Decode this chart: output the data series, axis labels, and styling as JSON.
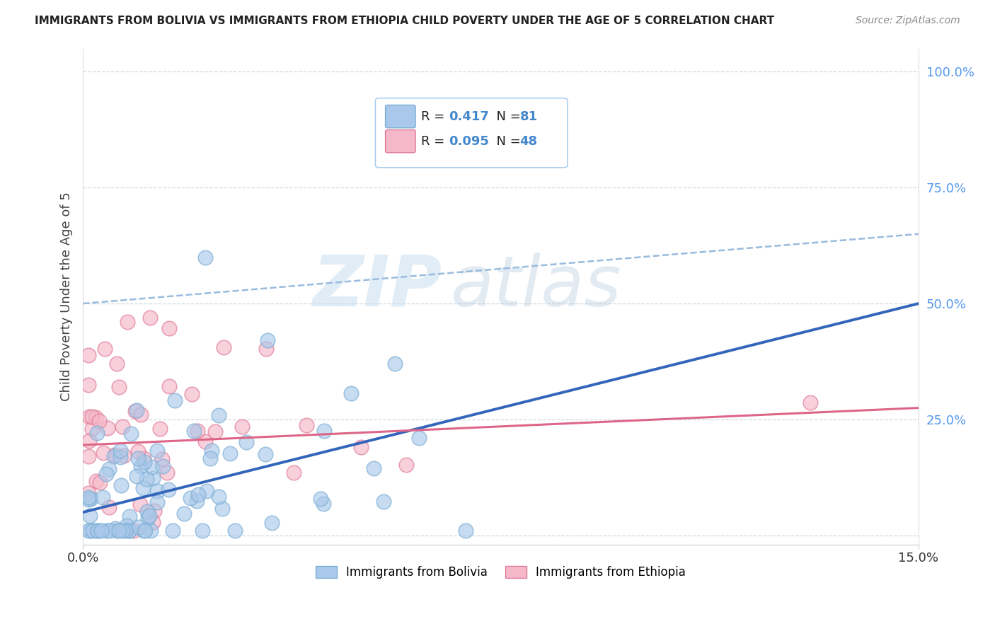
{
  "title": "IMMIGRANTS FROM BOLIVIA VS IMMIGRANTS FROM ETHIOPIA CHILD POVERTY UNDER THE AGE OF 5 CORRELATION CHART",
  "source": "Source: ZipAtlas.com",
  "ylabel": "Child Poverty Under the Age of 5",
  "watermark_zip": "ZIP",
  "watermark_atlas": "atlas",
  "bolivia_color": "#aac8ea",
  "bolivia_edge": "#7aaed4",
  "ethiopia_color": "#f5b8c8",
  "ethiopia_edge": "#e07898",
  "bolivia_line_color": "#3366bb",
  "ethiopia_line_color": "#dd6688",
  "dashed_line_color": "#99bbdd",
  "legend_bolivia_R": "0.417",
  "legend_bolivia_N": "81",
  "legend_ethiopia_R": "0.095",
  "legend_ethiopia_N": "48",
  "bolivia_trend_x0": 0.0,
  "bolivia_trend_y0": 0.05,
  "bolivia_trend_x1": 0.15,
  "bolivia_trend_y1": 0.5,
  "ethiopia_trend_x0": 0.0,
  "ethiopia_trend_y0": 0.195,
  "ethiopia_trend_x1": 0.15,
  "ethiopia_trend_y1": 0.275,
  "dashed_trend_x0": 0.0,
  "dashed_trend_y0": 0.5,
  "dashed_trend_x1": 0.15,
  "dashed_trend_y1": 0.65,
  "xlim": [
    0.0,
    0.15
  ],
  "ylim": [
    -0.02,
    1.05
  ],
  "ytick_vals": [
    0.0,
    0.25,
    0.5,
    0.75,
    1.0
  ],
  "ytick_labels": [
    "",
    "25.0%",
    "50.0%",
    "75.0%",
    "100.0%"
  ],
  "background_color": "#ffffff",
  "grid_color": "#d0d8e0",
  "title_color": "#222222",
  "source_color": "#888888",
  "yticklabel_color": "#5599ee",
  "xticklabel_color": "#333333"
}
